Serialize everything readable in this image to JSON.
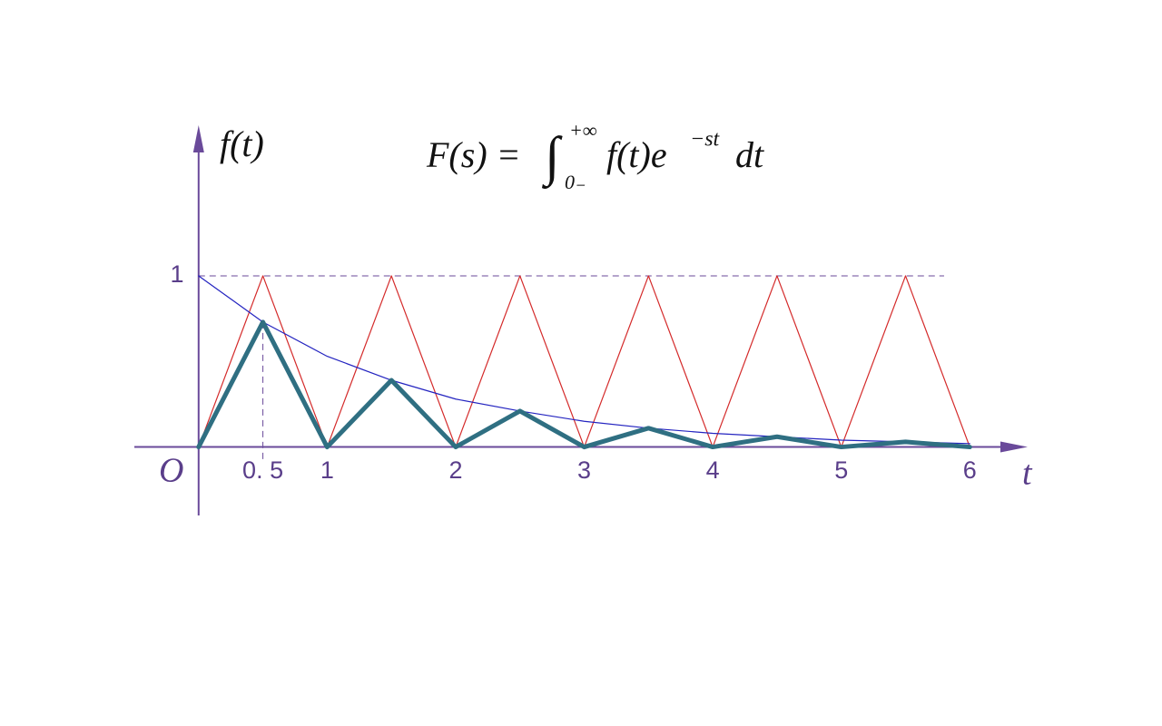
{
  "chart_data": {
    "type": "line",
    "y_label": "f(t)",
    "x_label": "t",
    "origin_label": "O",
    "formula": {
      "lhs": "F(s) =",
      "integral": "∫",
      "upper": "+∞",
      "lower": "0₋",
      "body": "f(t)e",
      "exponent": "−st",
      "tail": "dt"
    },
    "x": [
      0,
      0.5,
      1,
      1.5,
      2,
      2.5,
      3,
      3.5,
      4,
      4.5,
      5,
      5.5,
      6
    ],
    "series": [
      {
        "color": "#d42a2a",
        "values": [
          0,
          1,
          0,
          1,
          0,
          1,
          0,
          1,
          0,
          1,
          0,
          1,
          0
        ]
      },
      {
        "color": "#2424c0",
        "values": [
          1,
          0.73,
          0.53,
          0.39,
          0.28,
          0.21,
          0.15,
          0.11,
          0.08,
          0.06,
          0.04,
          0.03,
          0.02
        ]
      },
      {
        "color": "#2f6f82",
        "values": [
          0,
          0.73,
          0,
          0.39,
          0,
          0.21,
          0,
          0.11,
          0,
          0.06,
          0,
          0.03,
          0
        ]
      }
    ],
    "xlim": [
      -0.5,
      6.45
    ],
    "ylim": [
      -0.4,
      1.88
    ],
    "xticks": [
      {
        "value": 0.5,
        "label": "0. 5"
      },
      1,
      2,
      3,
      4,
      5,
      6
    ],
    "yticks": [
      1
    ],
    "axis_color": "#6a4a9a"
  }
}
